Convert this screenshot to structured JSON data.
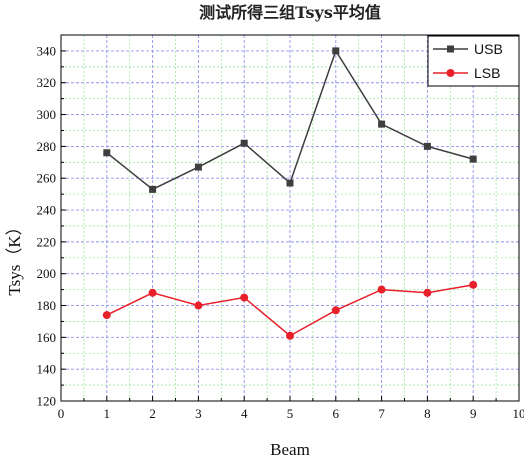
{
  "chart_data": {
    "type": "line",
    "title": "测试所得三组Tsys平均值",
    "xlabel": "Beam",
    "ylabel": "Tsys（K）",
    "xlim": [
      0,
      10
    ],
    "ylim": [
      120,
      350
    ],
    "x_ticks": [
      "0",
      "1",
      "2",
      "3",
      "4",
      "5",
      "6",
      "7",
      "8",
      "9",
      "10"
    ],
    "y_ticks": [
      "120",
      "140",
      "160",
      "180",
      "200",
      "220",
      "240",
      "260",
      "280",
      "300",
      "320",
      "340"
    ],
    "x": [
      1,
      2,
      3,
      4,
      5,
      6,
      7,
      8,
      9
    ],
    "series": [
      {
        "name": "USB",
        "marker": "square",
        "color": "#3f3f3f",
        "values": [
          276,
          253,
          267,
          282,
          257,
          340,
          294,
          280,
          272
        ]
      },
      {
        "name": "LSB",
        "marker": "circle",
        "color": "#e8202a",
        "values": [
          174,
          188,
          180,
          185,
          161,
          177,
          190,
          188,
          193
        ]
      }
    ],
    "grid": true,
    "legend_position": "top-right"
  }
}
